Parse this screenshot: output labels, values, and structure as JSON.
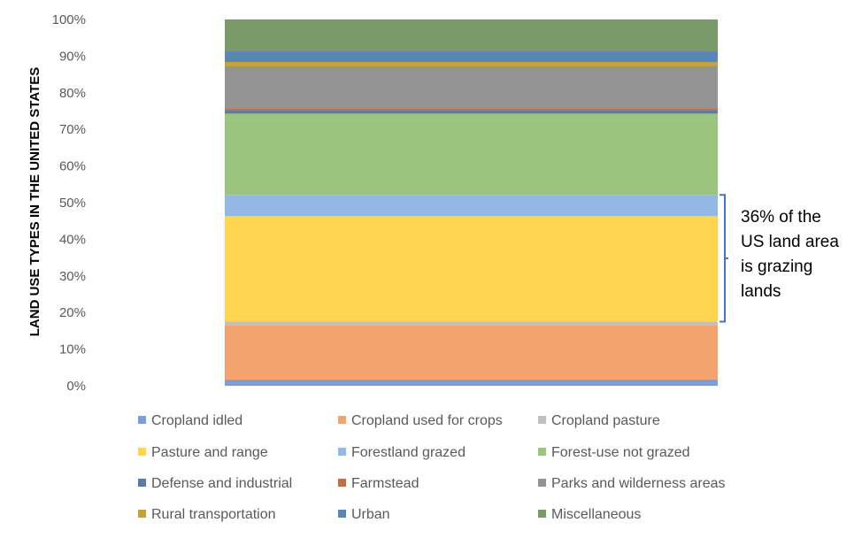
{
  "chart_data": {
    "type": "bar",
    "stacked": true,
    "normalized": true,
    "ylabel": "LAND USE TYPES IN THE UNITED STATES",
    "xlabel": "",
    "ylim": [
      0,
      100
    ],
    "yticks": [
      "0%",
      "10%",
      "20%",
      "30%",
      "40%",
      "50%",
      "60%",
      "70%",
      "80%",
      "90%",
      "100%"
    ],
    "grid": false,
    "legend_position": "bottom",
    "series": [
      {
        "name": "Cropland idled",
        "value": 1.7,
        "color": "#7F9ED9"
      },
      {
        "name": "Cropland used for crops",
        "value": 14.9,
        "color": "#F2A36E"
      },
      {
        "name": "Cropland pasture",
        "value": 0.9,
        "color": "#C0C0C0"
      },
      {
        "name": "Pasture and range",
        "value": 28.8,
        "color": "#FFD54F"
      },
      {
        "name": "Forestland grazed",
        "value": 5.8,
        "color": "#92B9E3"
      },
      {
        "name": "Forest-use not grazed",
        "value": 22.2,
        "color": "#9BC57F"
      },
      {
        "name": "Defense and industrial",
        "value": 1.0,
        "color": "#587BA8"
      },
      {
        "name": "Farmstead",
        "value": 0.5,
        "color": "#C46D43"
      },
      {
        "name": "Parks and wilderness areas",
        "value": 11.4,
        "color": "#939393"
      },
      {
        "name": "Rural transportation",
        "value": 1.2,
        "color": "#C5A13A"
      },
      {
        "name": "Urban",
        "value": 2.9,
        "color": "#5B85B8"
      },
      {
        "name": "Miscellaneous",
        "value": 8.7,
        "color": "#7A9A69"
      }
    ],
    "annotation": {
      "lines": [
        "36% of the",
        "US land area",
        "is grazing",
        "lands"
      ],
      "bracket_from": 17.5,
      "bracket_to": 52.1,
      "bracket_color": "#4472C4"
    }
  }
}
